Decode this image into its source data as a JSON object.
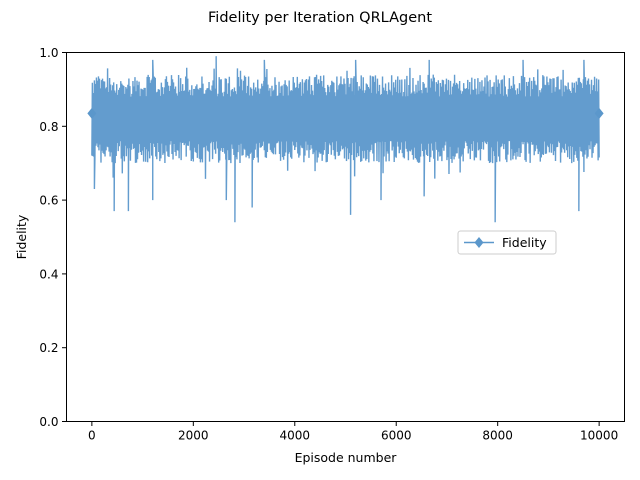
{
  "chart_data": {
    "type": "line",
    "title": "Fidelity per Iteration QRLAgent",
    "xlabel": "Episode number",
    "ylabel": "Fidelity",
    "xlim": [
      -500,
      10500
    ],
    "ylim": [
      0.0,
      1.0
    ],
    "xticks": [
      0,
      2000,
      4000,
      6000,
      8000,
      10000
    ],
    "yticks": [
      0.0,
      0.2,
      0.4,
      0.6,
      0.8,
      1.0
    ],
    "grid": false,
    "legend_position": "center-right",
    "series": [
      {
        "name": "Fidelity",
        "color": "#5b97cb",
        "marker": "diamond",
        "marker_at_episodes": [
          0,
          10000
        ],
        "summary": {
          "episodes": 10000,
          "mean": 0.82,
          "typical_low": 0.68,
          "typical_high": 0.96,
          "min": 0.54,
          "max": 0.99
        },
        "notable_dips": [
          {
            "x": 2820,
            "y": 0.54
          },
          {
            "x": 7950,
            "y": 0.54
          },
          {
            "x": 5100,
            "y": 0.56
          },
          {
            "x": 440,
            "y": 0.57
          },
          {
            "x": 720,
            "y": 0.57
          },
          {
            "x": 9600,
            "y": 0.57
          },
          {
            "x": 3160,
            "y": 0.58
          },
          {
            "x": 1200,
            "y": 0.6
          },
          {
            "x": 2650,
            "y": 0.6
          },
          {
            "x": 5700,
            "y": 0.6
          },
          {
            "x": 6550,
            "y": 0.61
          },
          {
            "x": 50,
            "y": 0.63
          }
        ],
        "notable_peaks": [
          {
            "x": 2450,
            "y": 0.99
          },
          {
            "x": 3400,
            "y": 0.98
          },
          {
            "x": 5200,
            "y": 0.98
          },
          {
            "x": 6650,
            "y": 0.98
          },
          {
            "x": 1200,
            "y": 0.98
          },
          {
            "x": 8500,
            "y": 0.98
          },
          {
            "x": 9700,
            "y": 0.98
          }
        ]
      }
    ]
  }
}
